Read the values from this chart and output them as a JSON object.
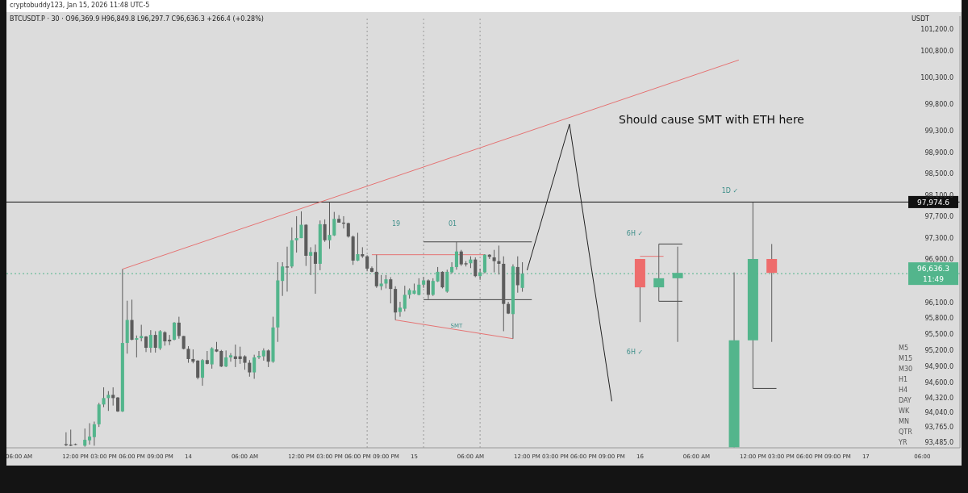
{
  "chart_data": {
    "type": "candlestick",
    "title": "BTCUSDT.P · 30 · O96,369.9 H96,849.8 L96,297.7 C96,636.3 +266.4 (+0.28%)",
    "subtitle": "cryptobuddy123, Jan 15, 2026 11:48 UTC-5",
    "ylabel": "USDT",
    "xlim": [
      "2026-01-13T04:40",
      "2026-01-17T10:00"
    ],
    "xticks": [
      {
        "value": "2026-01-13T06:00",
        "label": "06:00 AM"
      },
      {
        "value": "2026-01-13T12:00",
        "label": "12:00 PM"
      },
      {
        "value": "2026-01-13T15:00",
        "label": "03:00 PM"
      },
      {
        "value": "2026-01-13T18:00",
        "label": "06:00 PM"
      },
      {
        "value": "2026-01-13T21:00",
        "label": "09:00 PM"
      },
      {
        "value": "2026-01-14T00:00",
        "label": "14"
      },
      {
        "value": "2026-01-14T06:00",
        "label": "06:00 AM"
      },
      {
        "value": "2026-01-14T12:00",
        "label": "12:00 PM"
      },
      {
        "value": "2026-01-14T15:00",
        "label": "03:00 PM"
      },
      {
        "value": "2026-01-14T18:00",
        "label": "06:00 PM"
      },
      {
        "value": "2026-01-14T21:00",
        "label": "09:00 PM"
      },
      {
        "value": "2026-01-15T00:00",
        "label": "15"
      },
      {
        "value": "2026-01-15T06:00",
        "label": "06:00 AM"
      },
      {
        "value": "2026-01-15T12:00",
        "label": "12:00 PM"
      },
      {
        "value": "2026-01-15T15:00",
        "label": "03:00 PM"
      },
      {
        "value": "2026-01-15T18:00",
        "label": "06:00 PM"
      },
      {
        "value": "2026-01-15T21:00",
        "label": "09:00 PM"
      },
      {
        "value": "2026-01-16T00:00",
        "label": "16"
      },
      {
        "value": "2026-01-16T06:00",
        "label": "06:00 AM"
      },
      {
        "value": "2026-01-16T12:00",
        "label": "12:00 PM"
      },
      {
        "value": "2026-01-16T15:00",
        "label": "03:00 PM"
      },
      {
        "value": "2026-01-16T18:00",
        "label": "06:00 PM"
      },
      {
        "value": "2026-01-16T21:00",
        "label": "09:00 PM"
      },
      {
        "value": "2026-01-17T00:00",
        "label": "17"
      },
      {
        "value": "2026-01-17T06:00",
        "label": "06:00"
      }
    ],
    "ylim": [
      93380,
      101450
    ],
    "yticks": [
      {
        "value": 93485,
        "label": "93,485.0"
      },
      {
        "value": 93765,
        "label": "93,765.0"
      },
      {
        "value": 94040,
        "label": "94,040.0"
      },
      {
        "value": 94320,
        "label": "94,320.0"
      },
      {
        "value": 94600,
        "label": "94,600.0"
      },
      {
        "value": 94900,
        "label": "94,900.0"
      },
      {
        "value": 95200,
        "label": "95,200.0"
      },
      {
        "value": 95500,
        "label": "95,500.0"
      },
      {
        "value": 95800,
        "label": "95,800.0"
      },
      {
        "value": 96100,
        "label": "96,100.0"
      },
      {
        "value": 96900,
        "label": "96,900.0"
      },
      {
        "value": 97300,
        "label": "97,300.0"
      },
      {
        "value": 97700,
        "label": "97,700.0"
      },
      {
        "value": 98100,
        "label": "98,100.0"
      },
      {
        "value": 98500,
        "label": "98,500.0"
      },
      {
        "value": 98900,
        "label": "98,900.0"
      },
      {
        "value": 99300,
        "label": "99,300.0"
      },
      {
        "value": 99800,
        "label": "99,800.0"
      },
      {
        "value": 100300,
        "label": "100,300.0"
      },
      {
        "value": 100800,
        "label": "100,800.0"
      },
      {
        "value": 101200,
        "label": "101,200.0"
      }
    ],
    "series": [
      {
        "type": "line",
        "color": "#e57373",
        "x": [
          "2026-01-13T17:00",
          "2026-01-16T10:30"
        ],
        "values": [
          96720,
          100630
        ]
      },
      {
        "type": "line",
        "color": "#e57373",
        "x": [
          "2026-01-14T19:30",
          "2026-01-15T07:30"
        ],
        "values": [
          96990,
          96990
        ]
      },
      {
        "type": "line",
        "color": "#e57373",
        "x": [
          "2026-01-14T22:00",
          "2026-01-15T10:30"
        ],
        "values": [
          95770,
          95420
        ]
      },
      {
        "type": "line",
        "color": "#e57373",
        "x": [
          "2026-01-16T00:00",
          "2026-01-16T02:30"
        ],
        "values": [
          96960,
          96960
        ]
      },
      {
        "type": "line",
        "color": "#444444",
        "x": [
          "2026-01-15T01:00",
          "2026-01-15T12:30"
        ],
        "values": [
          97230,
          97230
        ]
      },
      {
        "type": "line",
        "color": "#444444",
        "x": [
          "2026-01-15T01:00",
          "2026-01-15T12:30"
        ],
        "values": [
          96150,
          96150
        ]
      },
      {
        "type": "line",
        "color": "#444444",
        "x": [
          "2026-01-16T02:00",
          "2026-01-16T04:30"
        ],
        "values": [
          97190,
          97190
        ]
      },
      {
        "type": "line",
        "color": "#444444",
        "x": [
          "2026-01-16T02:00",
          "2026-01-16T04:30"
        ],
        "values": [
          96120,
          96120
        ]
      },
      {
        "type": "line",
        "color": "#444444",
        "x": [
          "2026-01-16T12:00",
          "2026-01-16T14:30"
        ],
        "values": [
          94490,
          94490
        ]
      },
      {
        "type": "line",
        "color": "#222222",
        "x": [
          "2026-01-15T12:00",
          "2026-01-15T16:30",
          "2026-01-15T21:00"
        ],
        "values": [
          96700,
          99430,
          94250
        ]
      },
      {
        "x": [
          "2026-01-13T11:00",
          "2026-01-13T11:30",
          "2026-01-13T12:00",
          "2026-01-13T13:00",
          "2026-01-13T13:30",
          "2026-01-13T14:00",
          "2026-01-13T14:30",
          "2026-01-13T15:00",
          "2026-01-13T15:30",
          "2026-01-13T16:00",
          "2026-01-13T16:30",
          "2026-01-13T17:00",
          "2026-01-13T17:30",
          "2026-01-13T18:00",
          "2026-01-13T18:30",
          "2026-01-13T19:00",
          "2026-01-13T19:30",
          "2026-01-13T20:00",
          "2026-01-13T20:30",
          "2026-01-13T21:00",
          "2026-01-13T21:30",
          "2026-01-13T22:00",
          "2026-01-13T22:30",
          "2026-01-13T23:00",
          "2026-01-13T23:30",
          "2026-01-14T00:00",
          "2026-01-14T00:30",
          "2026-01-14T01:00",
          "2026-01-14T01:30",
          "2026-01-14T02:00",
          "2026-01-14T02:30",
          "2026-01-14T03:00",
          "2026-01-14T03:30",
          "2026-01-14T04:00",
          "2026-01-14T04:30",
          "2026-01-14T05:00",
          "2026-01-14T05:30",
          "2026-01-14T06:00",
          "2026-01-14T06:30",
          "2026-01-14T07:00",
          "2026-01-14T07:30",
          "2026-01-14T08:00",
          "2026-01-14T08:30",
          "2026-01-14T09:00",
          "2026-01-14T09:30",
          "2026-01-14T10:00",
          "2026-01-14T10:30",
          "2026-01-14T11:00",
          "2026-01-14T11:30",
          "2026-01-14T12:00",
          "2026-01-14T12:30",
          "2026-01-14T13:00",
          "2026-01-14T13:30",
          "2026-01-14T14:00",
          "2026-01-14T14:30",
          "2026-01-14T15:00",
          "2026-01-14T15:30",
          "2026-01-14T16:00",
          "2026-01-14T16:30",
          "2026-01-14T17:00",
          "2026-01-14T17:30",
          "2026-01-14T18:00",
          "2026-01-14T18:30",
          "2026-01-14T19:00",
          "2026-01-14T19:30",
          "2026-01-14T20:00",
          "2026-01-14T20:30",
          "2026-01-14T21:00",
          "2026-01-14T21:30",
          "2026-01-14T22:00",
          "2026-01-14T22:30",
          "2026-01-14T23:00",
          "2026-01-14T23:30",
          "2026-01-15T00:00",
          "2026-01-15T00:30",
          "2026-01-15T01:00",
          "2026-01-15T01:30",
          "2026-01-15T02:00",
          "2026-01-15T02:30",
          "2026-01-15T03:00",
          "2026-01-15T03:30",
          "2026-01-15T04:00",
          "2026-01-15T04:30",
          "2026-01-15T05:00",
          "2026-01-15T05:30",
          "2026-01-15T06:00",
          "2026-01-15T06:30",
          "2026-01-15T07:00",
          "2026-01-15T07:30",
          "2026-01-15T08:00",
          "2026-01-15T08:30",
          "2026-01-15T09:00",
          "2026-01-15T09:30",
          "2026-01-15T10:00",
          "2026-01-15T10:30",
          "2026-01-15T11:00",
          "2026-01-15T11:30"
        ],
        "ohlc": [
          [
            93450,
            93670,
            93410,
            93430
          ],
          [
            93440,
            93720,
            93410,
            93420
          ],
          [
            93450,
            93460,
            93430,
            93440
          ],
          [
            93420,
            93740,
            93400,
            93530
          ],
          [
            93520,
            93840,
            93440,
            93590
          ],
          [
            93580,
            93870,
            93420,
            93820
          ],
          [
            93820,
            94220,
            93770,
            94190
          ],
          [
            94190,
            94510,
            94140,
            94310
          ],
          [
            94310,
            94440,
            94070,
            94370
          ],
          [
            94370,
            94510,
            94170,
            94310
          ],
          [
            94320,
            94330,
            94050,
            94060
          ],
          [
            94060,
            96720,
            94050,
            95340
          ],
          [
            95340,
            96130,
            95140,
            95770
          ],
          [
            95770,
            96150,
            95390,
            95400
          ],
          [
            95400,
            95480,
            95070,
            95430
          ],
          [
            95430,
            95680,
            95370,
            95470
          ],
          [
            95460,
            95470,
            95170,
            95250
          ],
          [
            95250,
            95580,
            95160,
            95490
          ],
          [
            95490,
            95560,
            95160,
            95250
          ],
          [
            95240,
            95580,
            95210,
            95560
          ],
          [
            95540,
            95560,
            95290,
            95370
          ],
          [
            95400,
            95490,
            95300,
            95370
          ],
          [
            95400,
            95730,
            95390,
            95720
          ],
          [
            95720,
            95830,
            95420,
            95470
          ],
          [
            95470,
            95470,
            95220,
            95230
          ],
          [
            95230,
            95280,
            94970,
            95040
          ],
          [
            95040,
            95220,
            94960,
            94990
          ],
          [
            95010,
            95020,
            94660,
            94690
          ],
          [
            94690,
            95040,
            94540,
            95020
          ],
          [
            95020,
            95190,
            94940,
            94950
          ],
          [
            94940,
            95260,
            94860,
            95240
          ],
          [
            95220,
            95360,
            95170,
            95180
          ],
          [
            95190,
            95210,
            94890,
            94900
          ],
          [
            94900,
            95200,
            94890,
            95070
          ],
          [
            95070,
            95150,
            94990,
            95110
          ],
          [
            95090,
            95310,
            94890,
            95040
          ],
          [
            95090,
            95270,
            94950,
            95040
          ],
          [
            95090,
            95110,
            94840,
            94970
          ],
          [
            94970,
            95020,
            94710,
            94790
          ],
          [
            94790,
            95120,
            94670,
            95070
          ],
          [
            95070,
            95190,
            95040,
            95100
          ],
          [
            95090,
            95240,
            95010,
            95200
          ],
          [
            95200,
            95220,
            94890,
            94990
          ],
          [
            94990,
            95830,
            94970,
            95630
          ],
          [
            95630,
            96850,
            95360,
            96510
          ],
          [
            96500,
            96850,
            96220,
            96770
          ],
          [
            96770,
            97140,
            96300,
            96750
          ],
          [
            96770,
            97500,
            96740,
            97260
          ],
          [
            97260,
            97710,
            97030,
            97300
          ],
          [
            97300,
            97800,
            97300,
            97550
          ],
          [
            97550,
            97560,
            96780,
            96970
          ],
          [
            96970,
            97130,
            96610,
            97040
          ],
          [
            97040,
            97180,
            96260,
            96820
          ],
          [
            96820,
            97630,
            96700,
            97560
          ],
          [
            97560,
            97650,
            97230,
            97260
          ],
          [
            97260,
            97970,
            97100,
            97360
          ],
          [
            97350,
            97790,
            97340,
            97660
          ],
          [
            97660,
            97730,
            97590,
            97590
          ],
          [
            97590,
            97710,
            97480,
            97570
          ],
          [
            97580,
            97590,
            97310,
            97330
          ],
          [
            97330,
            97350,
            96800,
            96880
          ],
          [
            96880,
            97400,
            96870,
            97000
          ],
          [
            97000,
            97130,
            96930,
            96960
          ],
          [
            96960,
            96980,
            96680,
            96730
          ],
          [
            96740,
            96770,
            96660,
            96670
          ],
          [
            96670,
            96990,
            96370,
            96400
          ],
          [
            96400,
            96610,
            96330,
            96450
          ],
          [
            96450,
            96610,
            96360,
            96530
          ],
          [
            96530,
            96570,
            96080,
            96350
          ],
          [
            96350,
            96400,
            95770,
            95910
          ],
          [
            95920,
            96110,
            95830,
            96000
          ],
          [
            95980,
            96410,
            95930,
            96240
          ],
          [
            96240,
            96360,
            96170,
            96330
          ],
          [
            96260,
            96450,
            96250,
            96320
          ],
          [
            96240,
            96550,
            96230,
            96430
          ],
          [
            96430,
            96570,
            96370,
            96510
          ],
          [
            96510,
            96530,
            96160,
            96240
          ],
          [
            96240,
            96550,
            96220,
            96500
          ],
          [
            96490,
            96760,
            96480,
            96670
          ],
          [
            96670,
            96680,
            96360,
            96380
          ],
          [
            96300,
            96710,
            96280,
            96670
          ],
          [
            96660,
            96850,
            96640,
            96760
          ],
          [
            96760,
            97230,
            96710,
            97050
          ],
          [
            97050,
            97080,
            96780,
            96810
          ],
          [
            96830,
            96870,
            96770,
            96810
          ],
          [
            96830,
            96960,
            96740,
            96900
          ],
          [
            96900,
            96940,
            96570,
            96590
          ],
          [
            96590,
            96730,
            96520,
            96660
          ],
          [
            96660,
            97000,
            96640,
            96990
          ],
          [
            96990,
            97000,
            96910,
            96950
          ],
          [
            96940,
            97080,
            96660,
            96870
          ],
          [
            96870,
            97160,
            96620,
            96820
          ],
          [
            96820,
            96960,
            95560,
            96070
          ],
          [
            96070,
            96110,
            95880,
            95890
          ],
          [
            95880,
            96810,
            95420,
            96770
          ],
          [
            96760,
            96960,
            96280,
            96420
          ],
          [
            96369.9,
            96849.8,
            96297.7,
            96636.3
          ]
        ],
        "colors": [
          "#5c5c5c",
          "#5c5c5c",
          "#5c5c5c",
          "#53b58c",
          "#53b58c",
          "#53b58c",
          "#53b58c",
          "#53b58c",
          "#53b58c",
          "#5c5c5c",
          "#5c5c5c",
          "#53b58c",
          "#53b58c",
          "#5c5c5c",
          "#53b58c",
          "#53b58c",
          "#5c5c5c",
          "#53b58c",
          "#5c5c5c",
          "#53b58c",
          "#5c5c5c",
          "#5c5c5c",
          "#53b58c",
          "#5c5c5c",
          "#5c5c5c",
          "#5c5c5c",
          "#5c5c5c",
          "#5c5c5c",
          "#53b58c",
          "#5c5c5c",
          "#53b58c",
          "#5c5c5c",
          "#5c5c5c",
          "#53b58c",
          "#53b58c",
          "#5c5c5c",
          "#5c5c5c",
          "#5c5c5c",
          "#5c5c5c",
          "#53b58c",
          "#53b58c",
          "#53b58c",
          "#5c5c5c",
          "#53b58c",
          "#53b58c",
          "#53b58c",
          "#5c5c5c",
          "#53b58c",
          "#53b58c",
          "#53b58c",
          "#5c5c5c",
          "#53b58c",
          "#5c5c5c",
          "#53b58c",
          "#5c5c5c",
          "#53b58c",
          "#53b58c",
          "#5c5c5c",
          "#5c5c5c",
          "#5c5c5c",
          "#5c5c5c",
          "#53b58c",
          "#5c5c5c",
          "#5c5c5c",
          "#5c5c5c",
          "#5c5c5c",
          "#53b58c",
          "#53b58c",
          "#5c5c5c",
          "#5c5c5c",
          "#53b58c",
          "#53b58c",
          "#53b58c",
          "#53b58c",
          "#53b58c",
          "#53b58c",
          "#5c5c5c",
          "#53b58c",
          "#53b58c",
          "#5c5c5c",
          "#53b58c",
          "#53b58c",
          "#53b58c",
          "#5c5c5c",
          "#5c5c5c",
          "#53b58c",
          "#5c5c5c",
          "#53b58c",
          "#53b58c",
          "#5c5c5c",
          "#5c5c5c",
          "#5c5c5c",
          "#5c5c5c",
          "#5c5c5c",
          "#53b58c",
          "#5c5c5c",
          "#53b58c"
        ]
      },
      {
        "x": [
          "2026-01-16T00:00",
          "2026-01-16T02:00",
          "2026-01-16T04:00",
          "2026-01-16T10:00",
          "2026-01-16T12:00",
          "2026-01-16T14:00"
        ],
        "ohlc": [
          [
            96910,
            96910,
            95730,
            96380
          ],
          [
            96380,
            97190,
            96120,
            96550
          ],
          [
            96550,
            97140,
            95360,
            96650
          ],
          [
            93390,
            96660,
            93390,
            95390
          ],
          [
            95390,
            97970,
            94490,
            96910
          ],
          [
            96910,
            97190,
            95360,
            96650
          ]
        ],
        "colors": [
          "#ee6c6c",
          "#53b58c",
          "#53b58c",
          "#53b58c",
          "#53b58c",
          "#ee6c6c"
        ]
      }
    ],
    "ref_lines": [
      {
        "axis": "y",
        "value": 97974.6,
        "label": "97,974.6",
        "color": "#111111"
      },
      {
        "axis": "y",
        "value": 96636.3,
        "label": "96,636.3\n11:49",
        "color": "#53b58c",
        "line_style": "dotted"
      },
      {
        "axis": "x",
        "value": "2026-01-14T19:00",
        "color": "#9a9a9a",
        "line_style": "dotted"
      },
      {
        "axis": "x",
        "value": "2026-01-15T01:00",
        "color": "#9a9a9a",
        "line_style": "dotted"
      },
      {
        "axis": "x",
        "value": "2026-01-15T07:00",
        "color": "#9a9a9a",
        "line_style": "dotted"
      }
    ],
    "annotations": [
      "M5",
      "M15",
      "M30",
      "H1",
      "H4",
      "DAY",
      "WK",
      "MN",
      "QTR",
      "YR",
      "19",
      "01",
      "6H ✓",
      "6H ✓",
      "1D ✓",
      "Should cause SMT with ETH here",
      {
        "text": "SMT",
        "x": "2026-01-15T04:30",
        "y": 95660
      }
    ]
  }
}
